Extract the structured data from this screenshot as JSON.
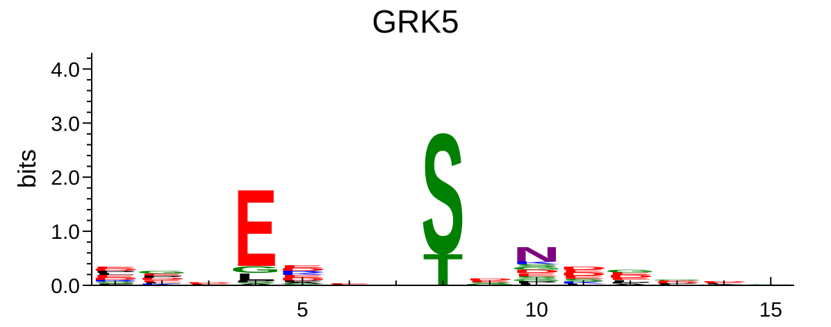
{
  "chart_data": {
    "type": "sequence-logo",
    "title": "GRK5",
    "xlabel": "",
    "ylabel": "bits",
    "ylim": [
      0,
      4.3
    ],
    "xlim": [
      0.5,
      15.5
    ],
    "y_ticks": [
      "0.0",
      "1.0",
      "2.0",
      "3.0",
      "4.0"
    ],
    "x_ticks": [
      "5",
      "10",
      "15"
    ],
    "grid": false,
    "colors": {
      "acidic": "#ff0000",
      "polar": "#008000",
      "basic": "#0000ff",
      "hydrophobic": "#000000",
      "amide": "#800080"
    },
    "positions": [
      {
        "position": 1,
        "letters": [
          {
            "letter": "F",
            "bits": 0.03,
            "color": "#000000"
          },
          {
            "letter": "S",
            "bits": 0.04,
            "color": "#008000"
          },
          {
            "letter": "R",
            "bits": 0.03,
            "color": "#0000ff"
          },
          {
            "letter": "D",
            "bits": 0.04,
            "color": "#ff0000"
          },
          {
            "letter": "E",
            "bits": 0.05,
            "color": "#ff0000"
          },
          {
            "letter": "L",
            "bits": 0.04,
            "color": "#000000"
          },
          {
            "letter": "P",
            "bits": 0.04,
            "color": "#000000"
          },
          {
            "letter": "D",
            "bits": 0.04,
            "color": "#ff0000"
          },
          {
            "letter": "E",
            "bits": 0.04,
            "color": "#ff0000"
          }
        ]
      },
      {
        "position": 2,
        "letters": [
          {
            "letter": "K",
            "bits": 0.03,
            "color": "#0000ff"
          },
          {
            "letter": "L",
            "bits": 0.03,
            "color": "#000000"
          },
          {
            "letter": "E",
            "bits": 0.04,
            "color": "#ff0000"
          },
          {
            "letter": "D",
            "bits": 0.04,
            "color": "#ff0000"
          },
          {
            "letter": "P",
            "bits": 0.04,
            "color": "#000000"
          },
          {
            "letter": "E",
            "bits": 0.04,
            "color": "#ff0000"
          },
          {
            "letter": "G",
            "bits": 0.05,
            "color": "#008000"
          }
        ]
      },
      {
        "position": 3,
        "letters": [
          {
            "letter": "L",
            "bits": 0.02,
            "color": "#000000"
          },
          {
            "letter": "E",
            "bits": 0.02,
            "color": "#ff0000"
          },
          {
            "letter": "D",
            "bits": 0.02,
            "color": "#ff0000"
          }
        ]
      },
      {
        "position": 4,
        "letters": [
          {
            "letter": "A",
            "bits": 0.03,
            "color": "#000000"
          },
          {
            "letter": "S",
            "bits": 0.03,
            "color": "#008000"
          },
          {
            "letter": "P",
            "bits": 0.03,
            "color": "#000000"
          },
          {
            "letter": "L",
            "bits": 0.14,
            "color": "#000000"
          },
          {
            "letter": "G",
            "bits": 0.13,
            "color": "#008000"
          },
          {
            "letter": "E",
            "bits": 1.46,
            "color": "#ff0000"
          }
        ]
      },
      {
        "position": 5,
        "letters": [
          {
            "letter": "S",
            "bits": 0.03,
            "color": "#008000"
          },
          {
            "letter": "A",
            "bits": 0.03,
            "color": "#000000"
          },
          {
            "letter": "P",
            "bits": 0.03,
            "color": "#000000"
          },
          {
            "letter": "D",
            "bits": 0.05,
            "color": "#ff0000"
          },
          {
            "letter": "E",
            "bits": 0.05,
            "color": "#ff0000"
          },
          {
            "letter": "K",
            "bits": 0.04,
            "color": "#0000ff"
          },
          {
            "letter": "R",
            "bits": 0.04,
            "color": "#0000ff"
          },
          {
            "letter": "D",
            "bits": 0.05,
            "color": "#ff0000"
          },
          {
            "letter": "E",
            "bits": 0.05,
            "color": "#ff0000"
          }
        ]
      },
      {
        "position": 6,
        "letters": [
          {
            "letter": "L",
            "bits": 0.02,
            "color": "#000000"
          },
          {
            "letter": "E",
            "bits": 0.02,
            "color": "#ff0000"
          }
        ]
      },
      {
        "position": 7,
        "letters": [
          {
            "letter": "P",
            "bits": 0.01,
            "color": "#000000"
          }
        ]
      },
      {
        "position": 8,
        "letters": [
          {
            "letter": "T",
            "bits": 0.6,
            "color": "#008000"
          },
          {
            "letter": "S",
            "bits": 2.28,
            "color": "#008000"
          }
        ]
      },
      {
        "position": 9,
        "letters": [
          {
            "letter": "G",
            "bits": 0.03,
            "color": "#008000"
          },
          {
            "letter": "S",
            "bits": 0.03,
            "color": "#008000"
          },
          {
            "letter": "E",
            "bits": 0.03,
            "color": "#ff0000"
          },
          {
            "letter": "D",
            "bits": 0.04,
            "color": "#ff0000"
          }
        ]
      },
      {
        "position": 10,
        "letters": [
          {
            "letter": "L",
            "bits": 0.04,
            "color": "#000000"
          },
          {
            "letter": "P",
            "bits": 0.04,
            "color": "#000000"
          },
          {
            "letter": "G",
            "bits": 0.04,
            "color": "#008000"
          },
          {
            "letter": "S",
            "bits": 0.05,
            "color": "#008000"
          },
          {
            "letter": "E",
            "bits": 0.06,
            "color": "#ff0000"
          },
          {
            "letter": "D",
            "bits": 0.06,
            "color": "#ff0000"
          },
          {
            "letter": "G",
            "bits": 0.05,
            "color": "#008000"
          },
          {
            "letter": "S",
            "bits": 0.05,
            "color": "#008000"
          },
          {
            "letter": "K",
            "bits": 0.05,
            "color": "#0000ff"
          },
          {
            "letter": "N",
            "bits": 0.27,
            "color": "#800080"
          }
        ]
      },
      {
        "position": 11,
        "letters": [
          {
            "letter": "L",
            "bits": 0.03,
            "color": "#000000"
          },
          {
            "letter": "K",
            "bits": 0.04,
            "color": "#0000ff"
          },
          {
            "letter": "S",
            "bits": 0.05,
            "color": "#008000"
          },
          {
            "letter": "E",
            "bits": 0.06,
            "color": "#ff0000"
          },
          {
            "letter": "D",
            "bits": 0.06,
            "color": "#ff0000"
          },
          {
            "letter": "E",
            "bits": 0.05,
            "color": "#ff0000"
          },
          {
            "letter": "D",
            "bits": 0.06,
            "color": "#ff0000"
          }
        ]
      },
      {
        "position": 12,
        "letters": [
          {
            "letter": "A",
            "bits": 0.03,
            "color": "#000000"
          },
          {
            "letter": "P",
            "bits": 0.03,
            "color": "#000000"
          },
          {
            "letter": "L",
            "bits": 0.04,
            "color": "#000000"
          },
          {
            "letter": "E",
            "bits": 0.04,
            "color": "#ff0000"
          },
          {
            "letter": "D",
            "bits": 0.05,
            "color": "#ff0000"
          },
          {
            "letter": "E",
            "bits": 0.05,
            "color": "#ff0000"
          },
          {
            "letter": "G",
            "bits": 0.05,
            "color": "#008000"
          }
        ]
      },
      {
        "position": 13,
        "letters": [
          {
            "letter": "L",
            "bits": 0.02,
            "color": "#000000"
          },
          {
            "letter": "P",
            "bits": 0.02,
            "color": "#000000"
          },
          {
            "letter": "D",
            "bits": 0.03,
            "color": "#ff0000"
          },
          {
            "letter": "E",
            "bits": 0.02,
            "color": "#ff0000"
          },
          {
            "letter": "G",
            "bits": 0.02,
            "color": "#008000"
          }
        ]
      },
      {
        "position": 14,
        "letters": [
          {
            "letter": "A",
            "bits": 0.02,
            "color": "#000000"
          },
          {
            "letter": "L",
            "bits": 0.02,
            "color": "#000000"
          },
          {
            "letter": "E",
            "bits": 0.02,
            "color": "#ff0000"
          },
          {
            "letter": "D",
            "bits": 0.02,
            "color": "#ff0000"
          }
        ]
      },
      {
        "position": 15,
        "letters": [
          {
            "letter": "E",
            "bits": 0.01,
            "color": "#ff0000"
          },
          {
            "letter": "G",
            "bits": 0.01,
            "color": "#008000"
          }
        ]
      }
    ]
  }
}
